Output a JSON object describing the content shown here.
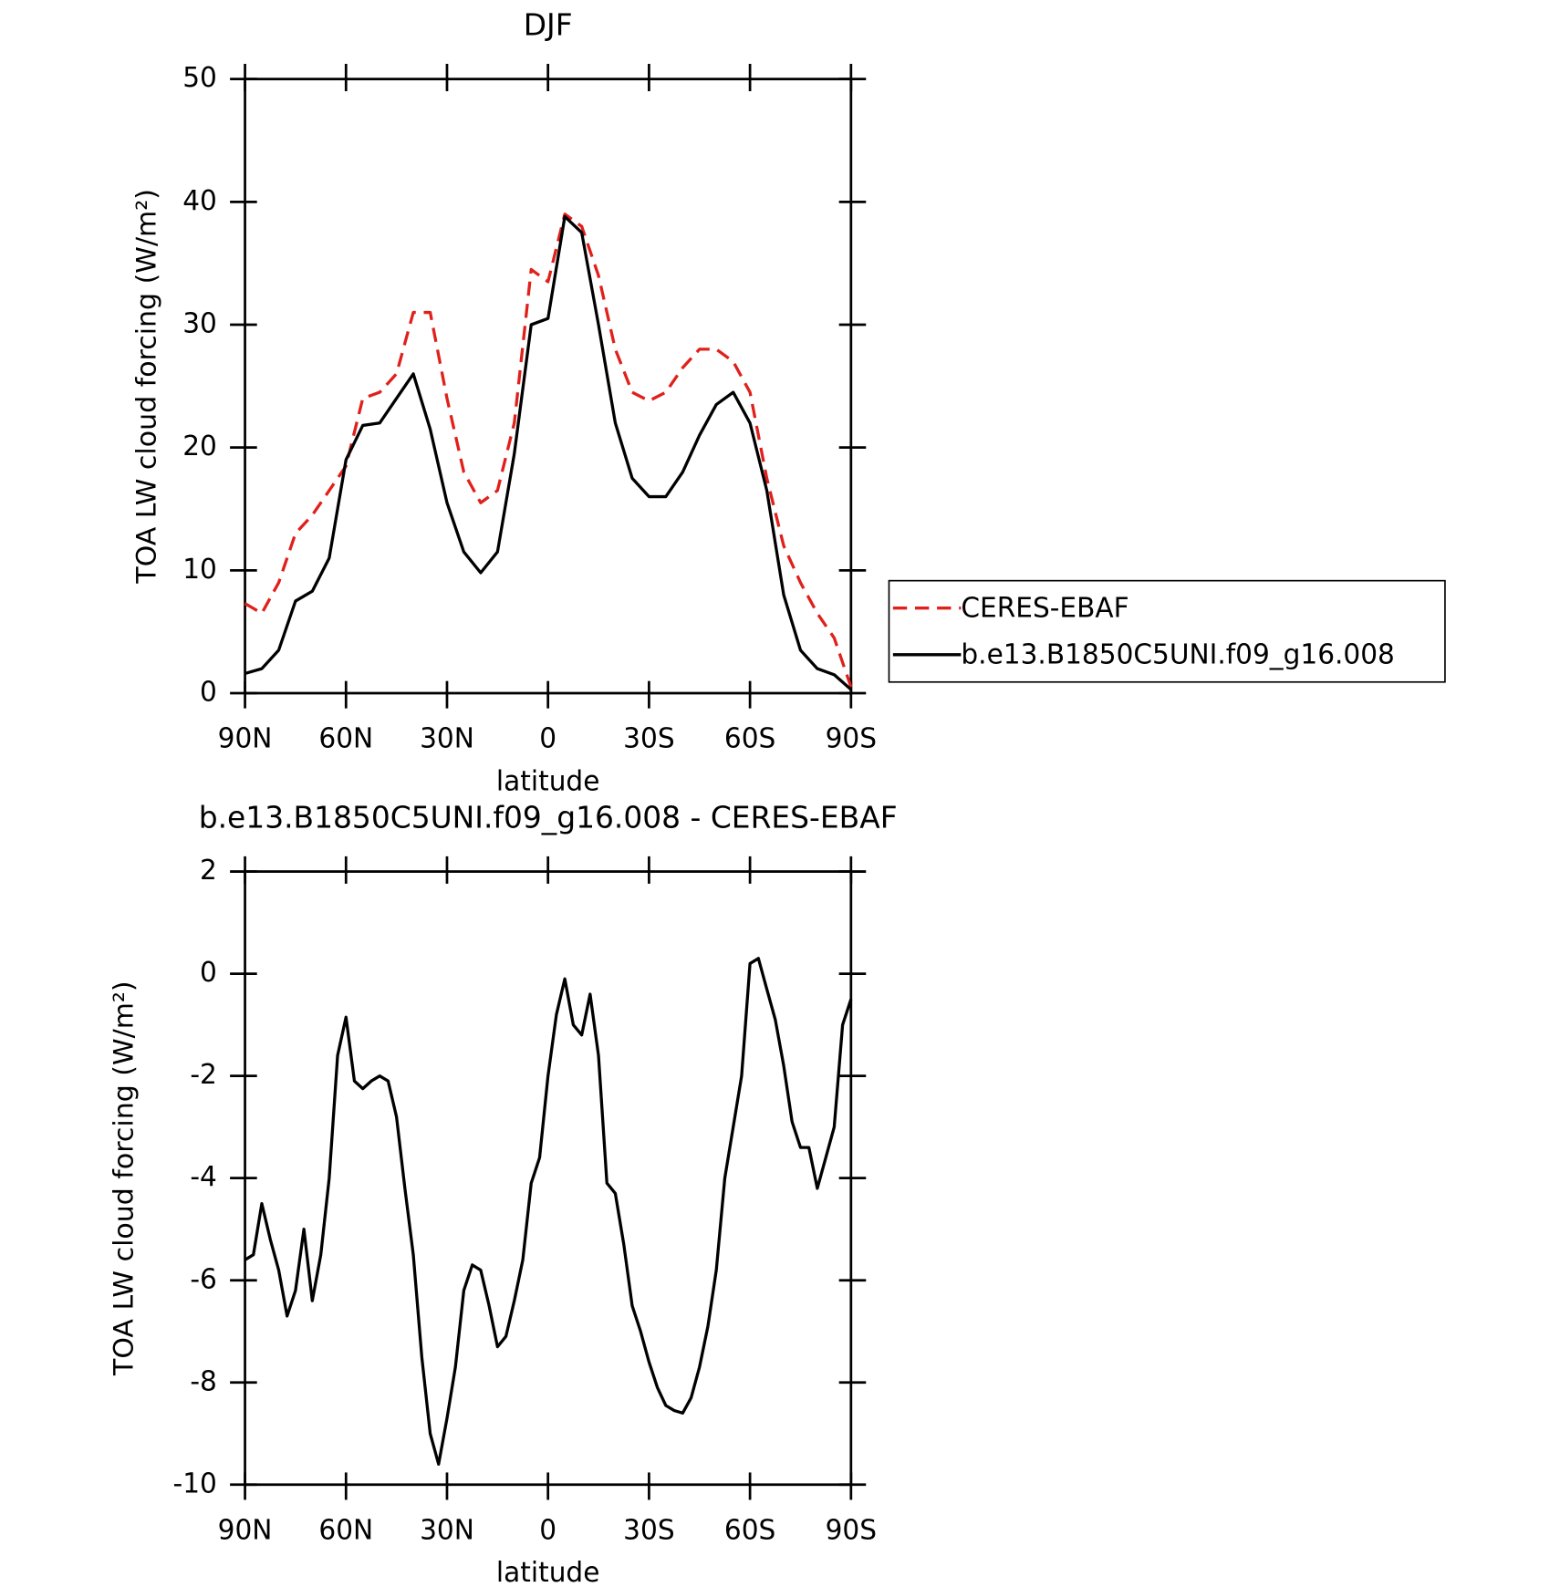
{
  "chart_data": [
    {
      "type": "line",
      "title": "DJF",
      "xlabel": "latitude",
      "ylabel": "TOA LW cloud forcing (W/m²)",
      "x": [
        90,
        85,
        80,
        75,
        70,
        65,
        60,
        55,
        50,
        45,
        40,
        35,
        30,
        25,
        20,
        15,
        10,
        5,
        0,
        -5,
        -10,
        -15,
        -20,
        -25,
        -30,
        -35,
        -40,
        -45,
        -50,
        -55,
        -60,
        -65,
        -70,
        -75,
        -80,
        -85,
        -90
      ],
      "series": [
        {
          "name": "CERES-EBAF",
          "color": "#e0201b",
          "dash": true,
          "values": [
            7.3,
            6.5,
            9,
            13,
            14.5,
            16.5,
            18.5,
            24,
            24.5,
            26,
            31,
            31,
            24,
            18,
            15.5,
            16.5,
            22,
            34.5,
            33.5,
            39,
            38,
            34,
            28,
            24.5,
            23.8,
            24.5,
            26.5,
            28,
            28,
            27,
            24.5,
            17.5,
            12,
            9,
            6.5,
            4.5,
            0.5
          ]
        },
        {
          "name": "b.e13.B1850C5UNI.f09_g16.008",
          "color": "#000000",
          "dash": false,
          "values": [
            1.6,
            2,
            3.5,
            7.5,
            8.3,
            11,
            19,
            21.8,
            22,
            24,
            26,
            21.5,
            15.5,
            11.5,
            9.8,
            11.5,
            19.5,
            30,
            30.5,
            38.8,
            37.5,
            30,
            22,
            17.5,
            16,
            16,
            18,
            21,
            23.5,
            24.5,
            22,
            16.5,
            8,
            3.5,
            2,
            1.5,
            0.3
          ]
        }
      ],
      "xlim": [
        90,
        -90
      ],
      "xticks": [
        {
          "value": 90,
          "label": "90N"
        },
        {
          "value": 60,
          "label": "60N"
        },
        {
          "value": 30,
          "label": "30N"
        },
        0,
        {
          "value": -30,
          "label": "30S"
        },
        {
          "value": -60,
          "label": "60S"
        },
        {
          "value": -90,
          "label": "90S"
        }
      ],
      "ylim": [
        0,
        50
      ],
      "yticks": [
        0,
        10,
        20,
        30,
        40,
        50
      ],
      "legend": "right"
    },
    {
      "type": "line",
      "title": "b.e13.B1850C5UNI.f09_g16.008 - CERES-EBAF",
      "xlabel": "latitude",
      "ylabel": "TOA LW cloud forcing (W/m²)",
      "x": [
        90,
        87.5,
        85,
        82.5,
        80,
        77.5,
        75,
        72.5,
        70,
        67.5,
        65,
        62.5,
        60,
        57.5,
        55,
        52.5,
        50,
        47.5,
        45,
        42.5,
        40,
        37.5,
        35,
        32.5,
        30,
        27.5,
        25,
        22.5,
        20,
        17.5,
        15,
        12.5,
        10,
        7.5,
        5,
        2.5,
        0,
        -2.5,
        -5,
        -7.5,
        -10,
        -12.5,
        -15,
        -17.5,
        -20,
        -22.5,
        -25,
        -27.5,
        -30,
        -32.5,
        -35,
        -37.5,
        -40,
        -42.5,
        -45,
        -47.5,
        -50,
        -52.5,
        -55,
        -57.5,
        -60,
        -62.5,
        -65,
        -67.5,
        -70,
        -72.5,
        -75,
        -77.5,
        -80,
        -82.5,
        -85,
        -87.5,
        -90
      ],
      "series": [
        {
          "color": "#000000",
          "dash": false,
          "values": [
            -5.6,
            -5.5,
            -4.5,
            -5.2,
            -5.8,
            -6.7,
            -6.2,
            -5.0,
            -6.4,
            -5.5,
            -4.0,
            -1.6,
            -0.85,
            -2.1,
            -2.25,
            -2.1,
            -2.0,
            -2.1,
            -2.8,
            -4.2,
            -5.5,
            -7.5,
            -9.0,
            -9.6,
            -8.7,
            -7.7,
            -6.2,
            -5.7,
            -5.8,
            -6.5,
            -7.3,
            -7.1,
            -6.4,
            -5.6,
            -4.1,
            -3.6,
            -2.0,
            -0.8,
            -0.1,
            -1.0,
            -1.2,
            -0.4,
            -1.6,
            -4.1,
            -4.3,
            -5.3,
            -6.5,
            -7.0,
            -7.6,
            -8.1,
            -8.45,
            -8.55,
            -8.6,
            -8.3,
            -7.7,
            -6.9,
            -5.8,
            -4.0,
            -3.0,
            -2.0,
            0.2,
            0.3,
            -0.3,
            -0.9,
            -1.8,
            -2.9,
            -3.4,
            -3.4,
            -4.2,
            -3.6,
            -3.0,
            -1.0,
            -0.5
          ]
        }
      ],
      "xlim": [
        90,
        -90
      ],
      "xticks": [
        {
          "value": 90,
          "label": "90N"
        },
        {
          "value": 60,
          "label": "60N"
        },
        {
          "value": 30,
          "label": "30N"
        },
        0,
        {
          "value": -30,
          "label": "30S"
        },
        {
          "value": -60,
          "label": "60S"
        },
        {
          "value": -90,
          "label": "90S"
        }
      ],
      "ylim": [
        -10,
        2
      ],
      "yticks": [
        -10,
        -8,
        -6,
        -4,
        -2,
        0,
        2
      ]
    }
  ]
}
